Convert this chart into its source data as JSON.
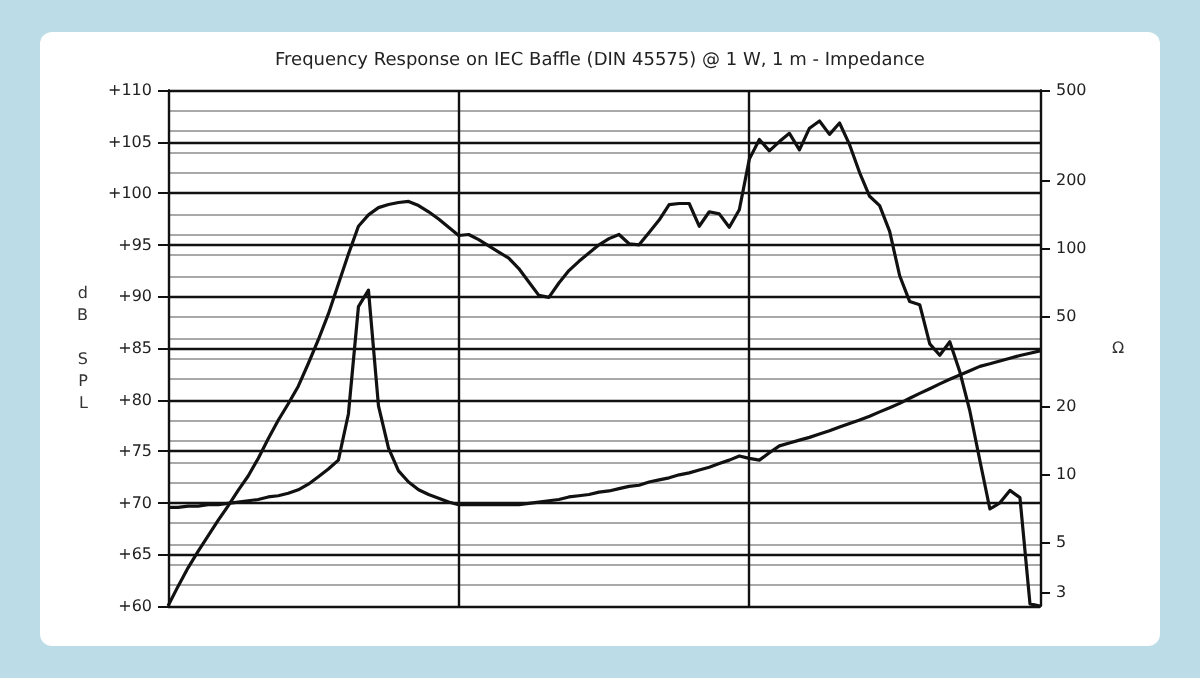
{
  "chart_data": {
    "type": "line",
    "title": "Frequency Response on IEC Baffle (DIN 45575) @ 1 W, 1 m - Impedance",
    "ylabel": "dB SPL",
    "y2label": "Ω",
    "categories": [
      null,
      null,
      null,
      null,
      null,
      null,
      null,
      null,
      null,
      null,
      null,
      null,
      null,
      null,
      null,
      null,
      null,
      null,
      null,
      null,
      null,
      null,
      null,
      null,
      null,
      null,
      null,
      null,
      null,
      null,
      null,
      null,
      null,
      null,
      null,
      null,
      null,
      null,
      null,
      null,
      null,
      null,
      null,
      null,
      null,
      null,
      null,
      null,
      null,
      null,
      null,
      null,
      null,
      null,
      null,
      null,
      null,
      null,
      null,
      null,
      null,
      null,
      null,
      null,
      null,
      null,
      null,
      null,
      null,
      null,
      null,
      null,
      null,
      null,
      null,
      null,
      null,
      null,
      null,
      null,
      null,
      null,
      null,
      null,
      null,
      null,
      null,
      null
    ],
    "series": [
      {
        "color": "#111111",
        "values": [
          60,
          61.9,
          63.7,
          65.3,
          66.8,
          68.3,
          69.7,
          71.2,
          72.6,
          74.3,
          76.2,
          78,
          79.6,
          81.3,
          83.5,
          85.8,
          88.3,
          91.2,
          94.1,
          96.8,
          97.9,
          98.6,
          98.9,
          99.1,
          99.2,
          98.8,
          98.2,
          97.5,
          96.7,
          95.9,
          96,
          95.5,
          94.9,
          94.3,
          93.7,
          92.7,
          91.4,
          90.1,
          89.9,
          91.3,
          92.5,
          93.4,
          94.2,
          95,
          95.6,
          96,
          95.1,
          95,
          96.2,
          97.4,
          98.9,
          99,
          99,
          96.8,
          98.2,
          98,
          96.7,
          98.4,
          103.3,
          105.2,
          104.1,
          105,
          105.8,
          104.2,
          106.3,
          107,
          105.7,
          106.8,
          104.7,
          102,
          99.7,
          98.8,
          96.3,
          92,
          89.5,
          89.2,
          85.4,
          84.3,
          85.6,
          82.7,
          78.9,
          74.1,
          69.4,
          70,
          71.2,
          70.5,
          60.2,
          60
        ]
      },
      {
        "color": "#111111",
        "axis": "y2",
        "values": [
          7.1,
          7.1,
          7.2,
          7.2,
          7.3,
          7.3,
          7.4,
          7.5,
          7.6,
          7.7,
          7.9,
          8,
          8.2,
          8.5,
          9,
          9.7,
          10.5,
          11.5,
          18.4,
          55,
          65,
          20,
          13,
          10.3,
          9.2,
          8.5,
          8.1,
          7.8,
          7.5,
          7.3,
          7.3,
          7.3,
          7.3,
          7.3,
          7.3,
          7.3,
          7.4,
          7.5,
          7.6,
          7.7,
          7.9,
          8,
          8.1,
          8.3,
          8.4,
          8.6,
          8.8,
          8.9,
          9.2,
          9.4,
          9.6,
          9.9,
          10.1,
          10.4,
          10.7,
          11.1,
          11.5,
          12,
          11.7,
          11.5,
          12.4,
          13.3,
          13.7,
          14.1,
          14.5,
          15,
          15.5,
          16.1,
          16.7,
          17.3,
          18,
          18.8,
          19.6,
          20.5,
          21.6,
          22.7,
          23.8,
          25,
          26.2,
          27.4,
          28.6,
          29.9,
          30.7,
          31.6,
          32.5,
          33.4,
          34.2,
          35
        ]
      }
    ],
    "ylim": [
      60,
      110
    ],
    "yticks": [
      {
        "value": 60,
        "label": "+60"
      },
      {
        "value": 65,
        "label": "+65"
      },
      {
        "value": 70,
        "label": "+70"
      },
      {
        "value": 75,
        "label": "+75"
      },
      {
        "value": 80,
        "label": "+80"
      },
      {
        "value": 85,
        "label": "+85"
      },
      {
        "value": 90,
        "label": "+90"
      },
      {
        "value": 95,
        "label": "+95"
      },
      {
        "value": 100,
        "label": "+100"
      },
      {
        "value": 105,
        "label": "+105"
      },
      {
        "value": 110,
        "label": "+110"
      }
    ],
    "y2lim": [
      2.6,
      500
    ],
    "y2ticks": [
      3,
      5,
      10,
      20,
      50,
      100,
      200,
      500
    ],
    "log": "y2",
    "grid": true,
    "marker": "none",
    "line_style": "solid"
  }
}
